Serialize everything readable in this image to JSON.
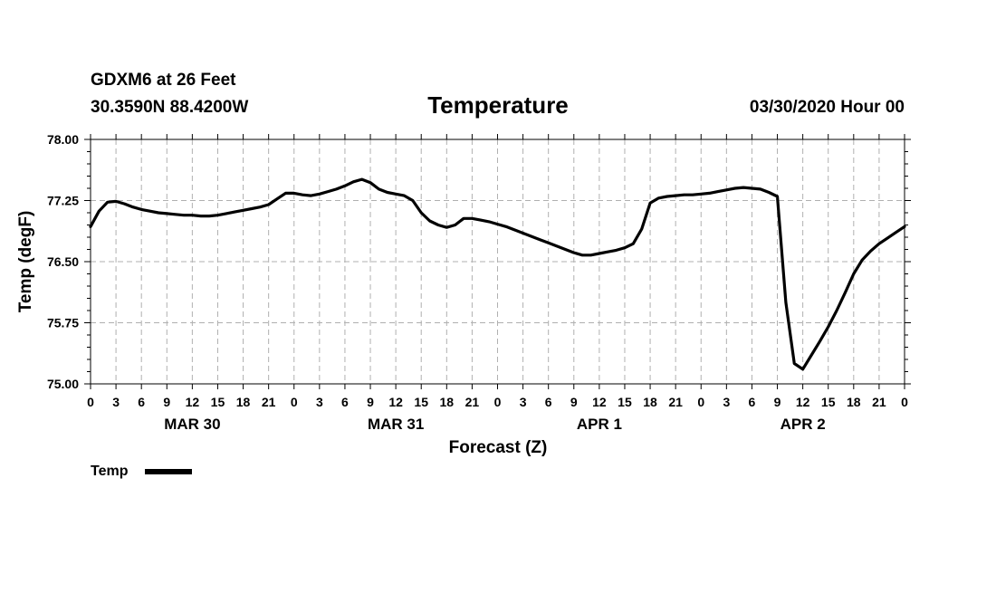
{
  "chart_data": {
    "type": "line",
    "title": "Temperature",
    "station": "GDXM6 at 26 Feet",
    "location": "30.3590N 88.4200W",
    "run": "03/30/2020 Hour 00",
    "xlabel": "Forecast (Z)",
    "ylabel": "Temp (degF)",
    "ylim": [
      75.0,
      78.0
    ],
    "yticks": [
      "75.00",
      "75.75",
      "76.50",
      "77.25",
      "78.00"
    ],
    "xlim": [
      0,
      96
    ],
    "xtick_labels": [
      "0",
      "3",
      "6",
      "9",
      "12",
      "15",
      "18",
      "21",
      "0",
      "3",
      "6",
      "9",
      "12",
      "15",
      "18",
      "21",
      "0",
      "3",
      "6",
      "9",
      "12",
      "15",
      "18",
      "21",
      "0",
      "3",
      "6",
      "9",
      "12",
      "15",
      "18",
      "21",
      "0"
    ],
    "day_labels": [
      {
        "label": "MAR 30",
        "hour": 12
      },
      {
        "label": "MAR 31",
        "hour": 36
      },
      {
        "label": "APR 1",
        "hour": 60
      },
      {
        "label": "APR 2",
        "hour": 84
      }
    ],
    "grid": true,
    "legend": "bottom-left",
    "series": [
      {
        "name": "Temp",
        "x": [
          0,
          1,
          2,
          3,
          4,
          5,
          6,
          7,
          8,
          9,
          10,
          11,
          12,
          13,
          14,
          15,
          16,
          17,
          18,
          19,
          20,
          21,
          22,
          23,
          24,
          25,
          26,
          27,
          28,
          29,
          30,
          31,
          32,
          33,
          34,
          35,
          36,
          37,
          38,
          39,
          40,
          41,
          42,
          43,
          44,
          45,
          46,
          47,
          48,
          49,
          50,
          51,
          52,
          53,
          54,
          55,
          56,
          57,
          58,
          59,
          60,
          61,
          62,
          63,
          64,
          65,
          66,
          67,
          68,
          69,
          70,
          71,
          72,
          73,
          74,
          75,
          76,
          77,
          78,
          79,
          80,
          81,
          82,
          83,
          84,
          85,
          86,
          87,
          88,
          89,
          90,
          91,
          92,
          93,
          94,
          95,
          96
        ],
        "values": [
          76.93,
          77.12,
          77.23,
          77.24,
          77.21,
          77.17,
          77.14,
          77.12,
          77.1,
          77.09,
          77.08,
          77.07,
          77.07,
          77.06,
          77.06,
          77.07,
          77.09,
          77.11,
          77.13,
          77.15,
          77.17,
          77.2,
          77.27,
          77.34,
          77.34,
          77.32,
          77.31,
          77.33,
          77.36,
          77.39,
          77.43,
          77.48,
          77.51,
          77.47,
          77.39,
          77.35,
          77.33,
          77.31,
          77.25,
          77.1,
          77.0,
          76.95,
          76.92,
          76.95,
          77.03,
          77.03,
          77.01,
          76.99,
          76.96,
          76.93,
          76.89,
          76.85,
          76.81,
          76.77,
          76.73,
          76.69,
          76.65,
          76.61,
          76.58,
          76.58,
          76.6,
          76.62,
          76.64,
          76.67,
          76.72,
          76.9,
          77.22,
          77.28,
          77.3,
          77.31,
          77.32,
          77.32,
          77.33,
          77.34,
          77.36,
          77.38,
          77.4,
          77.41,
          77.4,
          77.39,
          77.35,
          77.3,
          76.0,
          75.25,
          75.18,
          75.35,
          75.52,
          75.7,
          75.9,
          76.12,
          76.35,
          76.52,
          76.63,
          76.72,
          76.79,
          76.86,
          76.93
        ]
      }
    ]
  }
}
